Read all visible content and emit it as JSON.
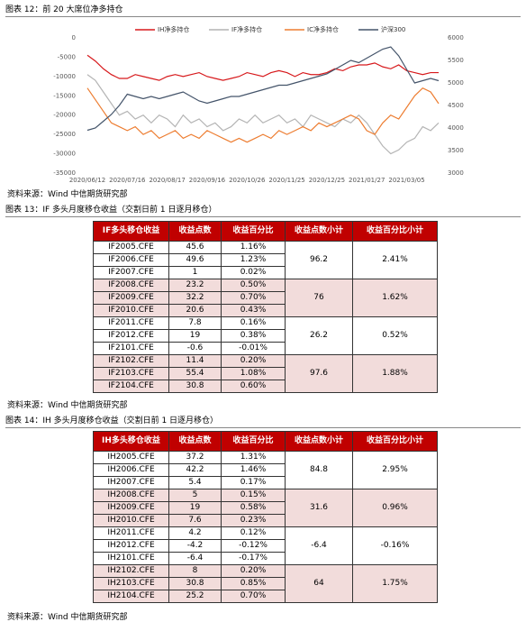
{
  "figure12": {
    "caption": "图表 12：前 20 大席位净多持仓",
    "source": "资料来源：Wind  中信期货研究部"
  },
  "chart_data": {
    "type": "line",
    "categories": [
      "2020/06/12",
      null,
      null,
      null,
      null,
      "2020/07/16",
      null,
      null,
      null,
      null,
      "2020/08/17",
      null,
      null,
      null,
      null,
      "2020/09/16",
      null,
      null,
      null,
      null,
      "2020/10/26",
      null,
      null,
      null,
      null,
      "2020/11/25",
      null,
      null,
      null,
      null,
      "2020/12/25",
      null,
      null,
      null,
      null,
      "2021/01/27",
      null,
      null,
      null,
      null,
      "2021/03/05",
      null,
      null,
      null,
      null
    ],
    "series": [
      {
        "name": "IH净多持仓",
        "color": "#d7191c",
        "values": [
          -4500,
          -6000,
          -8000,
          -9500,
          -10500,
          -10500,
          -9500,
          -10000,
          -10500,
          -11000,
          -10000,
          -9500,
          -10000,
          -9500,
          -9000,
          -10000,
          -10500,
          -11000,
          -10500,
          -10000,
          -9000,
          -9500,
          -10000,
          -9000,
          -8500,
          -9000,
          -10000,
          -9000,
          -9500,
          -9500,
          -9000,
          -8000,
          -8500,
          -7500,
          -7000,
          -7000,
          -6500,
          -7500,
          -8000,
          -7000,
          -8500,
          -9000,
          -9500,
          -9000,
          -9000
        ]
      },
      {
        "name": "IF净多持仓",
        "color": "#b4b4b4",
        "values": [
          -9500,
          -11000,
          -14000,
          -17000,
          -20000,
          -19000,
          -21000,
          -20000,
          -22000,
          -20000,
          -21000,
          -23000,
          -20000,
          -22000,
          -21000,
          -23000,
          -22000,
          -24000,
          -23000,
          -21000,
          -22000,
          -20000,
          -22000,
          -21000,
          -20000,
          -22000,
          -21000,
          -23000,
          -20000,
          -21000,
          -22000,
          -23000,
          -21000,
          -22000,
          -20000,
          -22000,
          -25000,
          -28000,
          -30000,
          -29000,
          -27000,
          -26000,
          -23000,
          -24000,
          -22000
        ]
      },
      {
        "name": "IC净多持仓",
        "color": "#ed7d31",
        "values": [
          -13000,
          -16000,
          -19000,
          -22000,
          -23000,
          -24000,
          -23000,
          -25000,
          -24000,
          -26000,
          -25000,
          -24000,
          -26000,
          -25000,
          -26000,
          -24000,
          -25000,
          -26000,
          -27000,
          -26000,
          -27000,
          -26000,
          -25000,
          -26000,
          -24000,
          -25000,
          -24000,
          -23000,
          -24000,
          -22000,
          -23000,
          -22000,
          -21000,
          -20000,
          -21000,
          -24000,
          -25000,
          -22000,
          -20000,
          -21000,
          -18000,
          -15000,
          -13000,
          -14000,
          -17000
        ]
      },
      {
        "name": "沪深300",
        "color": "#44546a",
        "axis": "y2",
        "values": [
          3950,
          4000,
          4150,
          4300,
          4500,
          4750,
          4700,
          4650,
          4700,
          4650,
          4700,
          4750,
          4800,
          4700,
          4600,
          4550,
          4600,
          4650,
          4700,
          4700,
          4750,
          4800,
          4850,
          4900,
          4950,
          4950,
          5000,
          5050,
          5100,
          5150,
          5200,
          5300,
          5400,
          5500,
          5450,
          5550,
          5650,
          5750,
          5800,
          5600,
          5300,
          5000,
          5050,
          5100,
          5050
        ]
      }
    ],
    "ylim": [
      -35000,
      0
    ],
    "yticks": [
      0,
      -5000,
      -10000,
      -15000,
      -20000,
      -25000,
      -30000,
      -35000
    ],
    "y2lim": [
      3000,
      6000
    ],
    "y2ticks": [
      6000,
      5500,
      5000,
      4500,
      4000,
      3500,
      3000
    ],
    "legend": "top"
  },
  "figure13": {
    "caption": "图表 13：IF 多头月度移仓收益（交割日前 1 日逐月移仓）",
    "header": [
      "IF多头移仓收益",
      "收益点数",
      "收益百分比",
      "收益点数小计",
      "收益百分比小计"
    ],
    "groups": [
      {
        "rows": [
          [
            "IF2005.CFE",
            "45.6",
            "1.16%"
          ],
          [
            "IF2006.CFE",
            "49.6",
            "1.23%"
          ],
          [
            "IF2007.CFE",
            "1",
            "0.02%"
          ]
        ],
        "subtotal": [
          "96.2",
          "2.41%"
        ]
      },
      {
        "rows": [
          [
            "IF2008.CFE",
            "23.2",
            "0.50%"
          ],
          [
            "IF2009.CFE",
            "32.2",
            "0.70%"
          ],
          [
            "IF2010.CFE",
            "20.6",
            "0.43%"
          ]
        ],
        "subtotal": [
          "76",
          "1.62%"
        ]
      },
      {
        "rows": [
          [
            "IF2011.CFE",
            "7.8",
            "0.16%"
          ],
          [
            "IF2012.CFE",
            "19",
            "0.38%"
          ],
          [
            "IF2101.CFE",
            "-0.6",
            "-0.01%"
          ]
        ],
        "subtotal": [
          "26.2",
          "0.52%"
        ]
      },
      {
        "rows": [
          [
            "IF2102.CFE",
            "11.4",
            "0.20%"
          ],
          [
            "IF2103.CFE",
            "55.4",
            "1.08%"
          ],
          [
            "IF2104.CFE",
            "30.8",
            "0.60%"
          ]
        ],
        "subtotal": [
          "97.6",
          "1.88%"
        ]
      }
    ],
    "source": "资料来源：Wind  中信期货研究部"
  },
  "figure14": {
    "caption": "图表 14：IH 多头月度移仓收益（交割日前 1 日逐月移仓）",
    "header": [
      "IH多头移仓收益",
      "收益点数",
      "收益百分比",
      "收益点数小计",
      "收益百分比小计"
    ],
    "groups": [
      {
        "rows": [
          [
            "IH2005.CFE",
            "37.2",
            "1.31%"
          ],
          [
            "IH2006.CFE",
            "42.2",
            "1.46%"
          ],
          [
            "IH2007.CFE",
            "5.4",
            "0.17%"
          ]
        ],
        "subtotal": [
          "84.8",
          "2.95%"
        ]
      },
      {
        "rows": [
          [
            "IH2008.CFE",
            "5",
            "0.15%"
          ],
          [
            "IH2009.CFE",
            "19",
            "0.58%"
          ],
          [
            "IH2010.CFE",
            "7.6",
            "0.23%"
          ]
        ],
        "subtotal": [
          "31.6",
          "0.96%"
        ]
      },
      {
        "rows": [
          [
            "IH2011.CFE",
            "4.2",
            "0.12%"
          ],
          [
            "IH2012.CFE",
            "-4.2",
            "-0.12%"
          ],
          [
            "IH2101.CFE",
            "-6.4",
            "-0.17%"
          ]
        ],
        "subtotal": [
          "-6.4",
          "-0.16%"
        ]
      },
      {
        "rows": [
          [
            "IH2102.CFE",
            "8",
            "0.20%"
          ],
          [
            "IH2103.CFE",
            "30.8",
            "0.85%"
          ],
          [
            "IH2104.CFE",
            "25.2",
            "0.70%"
          ]
        ],
        "subtotal": [
          "64",
          "1.75%"
        ]
      }
    ],
    "source": "资料来源：Wind  中信期货研究部"
  }
}
